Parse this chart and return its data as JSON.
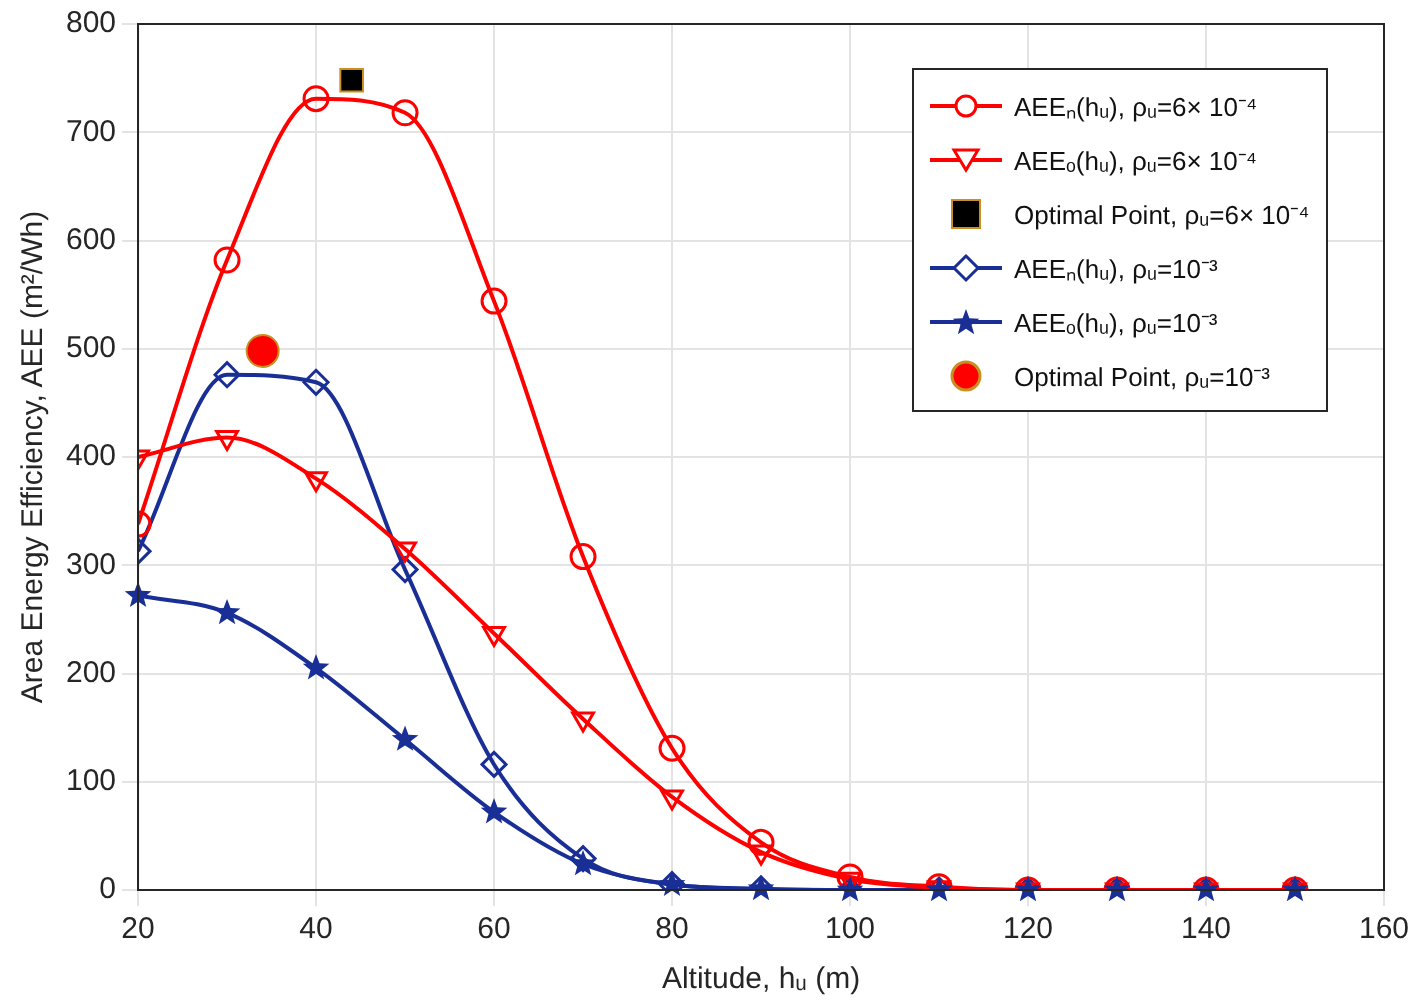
{
  "chart_data": {
    "type": "line",
    "xlabel": "Altitude, hᵤ (m)",
    "ylabel": "Area Energy Efficiency, AEE (m²/Wh)",
    "xlim": [
      20,
      160
    ],
    "xticks": [
      20,
      40,
      60,
      80,
      100,
      120,
      140,
      160
    ],
    "ylim": [
      0,
      800
    ],
    "yticks": [
      0,
      100,
      200,
      300,
      400,
      500,
      600,
      700,
      800
    ],
    "grid": true,
    "legend": "top right",
    "series": [
      {
        "name": "AEEₙ(hᵤ), ρᵤ=6× 10⁻⁴",
        "color": "#ff0000",
        "marker": "circle",
        "x": [
          20,
          30,
          40,
          50,
          60,
          70,
          80,
          90,
          100,
          110,
          120,
          130,
          140,
          150
        ],
        "values": [
          338,
          582,
          731,
          718,
          544,
          308,
          131,
          44,
          12,
          3,
          0,
          0,
          0,
          0
        ]
      },
      {
        "name": "AEEₒ(hᵤ), ρᵤ=6× 10⁻⁴",
        "color": "#ff0000",
        "marker": "triangle",
        "x": [
          20,
          30,
          40,
          50,
          60,
          70,
          80,
          90,
          100,
          110,
          120,
          130,
          140,
          150
        ],
        "values": [
          400,
          418,
          380,
          315,
          237,
          158,
          86,
          35,
          10,
          2,
          0,
          0,
          0,
          0
        ]
      },
      {
        "name": "Optimal Point, ρᵤ=6× 10⁻⁴",
        "type": "scatter",
        "color": "#000000",
        "marker": "square",
        "x": [
          44
        ],
        "values": [
          748
        ]
      },
      {
        "name": "AEEₙ(hᵤ), ρᵤ=10⁻³",
        "color": "#1a2f96",
        "marker": "diamond",
        "x": [
          20,
          30,
          40,
          50,
          60,
          70,
          80,
          90,
          100,
          110,
          120,
          130,
          140,
          150
        ],
        "values": [
          313,
          476,
          469,
          296,
          116,
          29,
          5,
          1,
          0,
          0,
          0,
          0,
          0,
          0
        ]
      },
      {
        "name": "AEEₒ(hᵤ), ρᵤ=10⁻³",
        "color": "#1a2f96",
        "marker": "star",
        "x": [
          20,
          30,
          40,
          50,
          60,
          70,
          80,
          90,
          100,
          110,
          120,
          130,
          140,
          150
        ],
        "values": [
          272,
          256,
          205,
          139,
          72,
          24,
          5,
          1,
          0,
          0,
          0,
          0,
          0,
          0
        ]
      },
      {
        "name": "Optimal Point, ρᵤ=10⁻³",
        "type": "scatter",
        "color": "#ff0000",
        "marker": "circle",
        "x": [
          34
        ],
        "values": [
          498
        ]
      }
    ]
  }
}
